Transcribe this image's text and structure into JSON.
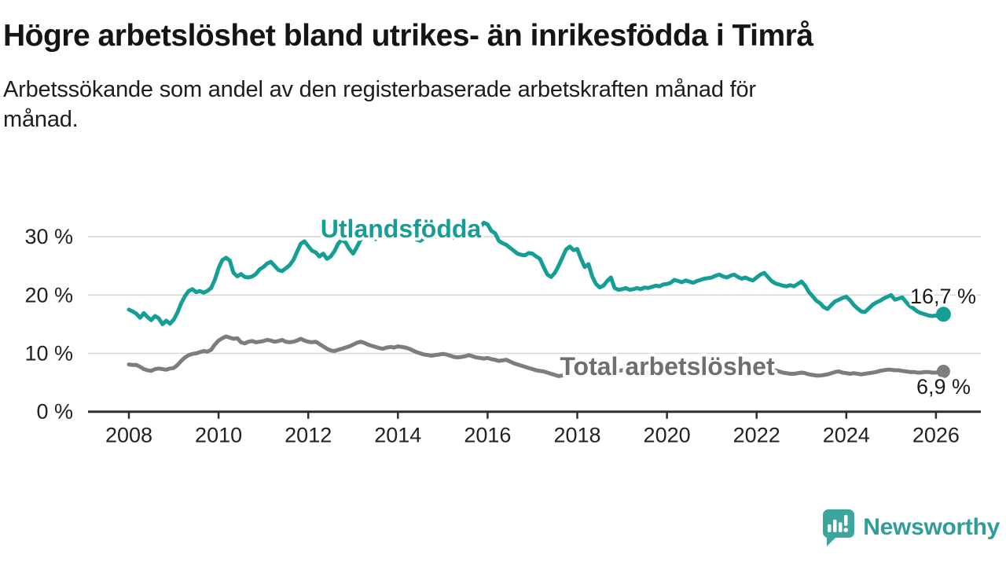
{
  "header": {
    "title": "Högre arbetslöshet bland utrikes- än inrikesfödda i Timrå",
    "subtitle_lines": [
      "Arbetssökande som andel av den registerbaserade arbetskraften månad för",
      "månad."
    ]
  },
  "chart_data": {
    "type": "line",
    "title": "Högre arbetslöshet bland utrikes- än inrikesfödda i Timrå",
    "subtitle": "Arbetssökande som andel av den registerbaserade arbetskraften månad för månad.",
    "grid": "horizontal-only",
    "legend_position": "inline-labels",
    "x_axis": {
      "ticks": [
        2008,
        2010,
        2012,
        2014,
        2016,
        2018,
        2020,
        2022,
        2024,
        2026
      ],
      "range": [
        2007.05,
        2027.0
      ]
    },
    "y_axis": {
      "tick_values": [
        0,
        10,
        20,
        30
      ],
      "tick_labels": [
        "0 %",
        "10 %",
        "20 %",
        "30 %"
      ],
      "range": [
        0,
        34
      ],
      "unit": "%"
    },
    "colors": {
      "foreign_born": "#149e96",
      "total": "#7c7c81",
      "axis": "#2d2d2d",
      "gridline": "#d8d8d8",
      "value_label": "#1a1a1a"
    },
    "series": [
      {
        "name": "Utlandsfödda",
        "color": "#149e96",
        "label_color": "#149e96",
        "end_label": "16,7 %",
        "end_value": 16.7,
        "start_year": 2008,
        "points_per_year": 12,
        "values": [
          17.5,
          17.2,
          16.8,
          16.1,
          16.9,
          16.2,
          15.7,
          16.4,
          16.0,
          15.0,
          15.6,
          15.1,
          15.8,
          17.0,
          18.6,
          19.8,
          20.7,
          21.0,
          20.5,
          20.7,
          20.4,
          20.7,
          21.2,
          22.6,
          24.6,
          26.0,
          26.4,
          25.9,
          23.8,
          23.2,
          23.6,
          23.1,
          23.0,
          23.2,
          23.6,
          24.4,
          24.8,
          25.4,
          25.7,
          25.0,
          24.3,
          24.1,
          24.6,
          25.1,
          26.0,
          27.4,
          28.8,
          29.2,
          28.4,
          27.6,
          27.3,
          26.6,
          27.1,
          26.2,
          26.6,
          27.5,
          28.8,
          29.5,
          29.0,
          27.9,
          27.1,
          28.2,
          29.5,
          29.9,
          30.3,
          30.0,
          29.6,
          29.9,
          30.1,
          29.8,
          30.3,
          30.8,
          31.0,
          30.8,
          30.6,
          30.9,
          30.2,
          29.5,
          29.3,
          29.8,
          30.1,
          30.3,
          30.0,
          30.4,
          30.5,
          30.2,
          29.9,
          29.8,
          30.2,
          30.3,
          29.9,
          29.8,
          30.1,
          30.4,
          31.6,
          32.4,
          32.1,
          31.0,
          30.6,
          29.3,
          28.9,
          28.6,
          28.1,
          27.6,
          27.1,
          26.9,
          26.8,
          27.2,
          27.1,
          26.6,
          26.2,
          24.8,
          23.5,
          23.1,
          23.8,
          25.0,
          26.4,
          27.8,
          28.3,
          27.7,
          27.9,
          26.2,
          24.8,
          25.3,
          23.2,
          21.9,
          21.3,
          21.6,
          22.4,
          23.0,
          21.2,
          20.9,
          21.0,
          21.2,
          20.9,
          21.0,
          21.2,
          21.0,
          21.3,
          21.2,
          21.4,
          21.6,
          21.5,
          21.8,
          21.9,
          22.1,
          22.6,
          22.4,
          22.2,
          22.5,
          22.3,
          22.1,
          22.4,
          22.6,
          22.8,
          22.9,
          23.0,
          23.3,
          23.5,
          23.2,
          23.0,
          23.3,
          23.5,
          23.1,
          22.8,
          23.0,
          22.7,
          22.5,
          23.0,
          23.5,
          23.8,
          23.1,
          22.4,
          22.0,
          21.8,
          21.6,
          21.5,
          21.7,
          21.5,
          21.9,
          22.3,
          21.6,
          20.5,
          19.8,
          19.0,
          18.6,
          17.9,
          17.6,
          18.3,
          18.9,
          19.2,
          19.5,
          19.7,
          19.1,
          18.3,
          17.7,
          17.2,
          17.1,
          17.7,
          18.3,
          18.7,
          19.0,
          19.4,
          19.7,
          20.0,
          19.2,
          19.4,
          19.6,
          18.8,
          18.1,
          17.7,
          17.2,
          16.9,
          16.7,
          16.5,
          16.4,
          16.5,
          16.3,
          16.7
        ]
      },
      {
        "name": "Total arbetslöshet",
        "color": "#7c7c81",
        "label_color": "#6e6e73",
        "end_label": "6,9 %",
        "end_value": 6.9,
        "start_year": 2008,
        "points_per_year": 12,
        "values": [
          8.1,
          8.0,
          8.0,
          7.7,
          7.3,
          7.1,
          7.0,
          7.3,
          7.4,
          7.3,
          7.2,
          7.4,
          7.5,
          8.0,
          8.7,
          9.3,
          9.7,
          9.9,
          10.0,
          10.2,
          10.4,
          10.3,
          10.6,
          11.5,
          12.2,
          12.6,
          12.9,
          12.7,
          12.5,
          12.6,
          11.9,
          11.7,
          12.0,
          12.1,
          11.9,
          12.0,
          12.1,
          12.3,
          12.2,
          12.0,
          12.1,
          12.3,
          12.0,
          11.9,
          12.0,
          12.2,
          12.5,
          12.2,
          12.0,
          11.9,
          12.0,
          11.6,
          11.2,
          10.8,
          10.5,
          10.4,
          10.6,
          10.8,
          11.0,
          11.2,
          11.5,
          11.8,
          12.0,
          11.8,
          11.5,
          11.3,
          11.1,
          10.9,
          10.8,
          11.0,
          11.1,
          11.0,
          11.2,
          11.1,
          11.0,
          10.8,
          10.5,
          10.2,
          10.0,
          9.8,
          9.7,
          9.6,
          9.7,
          9.8,
          9.9,
          9.8,
          9.6,
          9.4,
          9.3,
          9.4,
          9.5,
          9.7,
          9.5,
          9.3,
          9.2,
          9.1,
          9.2,
          9.0,
          8.9,
          8.7,
          8.8,
          8.9,
          8.6,
          8.3,
          8.1,
          7.9,
          7.7,
          7.5,
          7.3,
          7.1,
          7.0,
          6.9,
          6.7,
          6.5,
          6.3,
          6.1,
          6.2,
          6.4,
          6.6,
          6.8,
          7.0,
          7.2,
          7.3,
          7.2,
          7.1,
          7.0,
          7.1,
          7.2,
          7.1,
          7.0,
          6.9,
          7.0,
          7.1,
          7.0,
          6.9,
          6.8,
          6.6,
          6.5,
          6.5,
          6.6,
          6.6,
          6.7,
          6.8,
          6.9,
          7.0,
          7.2,
          7.4,
          7.6,
          7.6,
          7.5,
          7.4,
          7.4,
          7.3,
          7.3,
          7.4,
          7.4,
          7.5,
          7.5,
          7.4,
          7.4,
          7.5,
          7.5,
          7.4,
          7.4,
          7.5,
          7.5,
          7.4,
          7.5,
          7.5,
          7.6,
          7.5,
          7.4,
          7.2,
          7.1,
          6.9,
          6.7,
          6.6,
          6.5,
          6.5,
          6.6,
          6.7,
          6.6,
          6.4,
          6.3,
          6.2,
          6.2,
          6.3,
          6.4,
          6.6,
          6.8,
          6.9,
          6.7,
          6.6,
          6.5,
          6.6,
          6.5,
          6.4,
          6.5,
          6.6,
          6.7,
          6.8,
          7.0,
          7.1,
          7.2,
          7.2,
          7.1,
          7.1,
          7.0,
          6.9,
          6.8,
          6.8,
          6.7,
          6.7,
          6.8,
          6.8,
          6.7,
          6.7,
          6.8,
          6.9
        ]
      }
    ]
  },
  "footer": {
    "brand": "Newsworthy",
    "brand_color": "#2f9d98",
    "logo_icon": "speech-bubble-bar-chart-icon"
  }
}
